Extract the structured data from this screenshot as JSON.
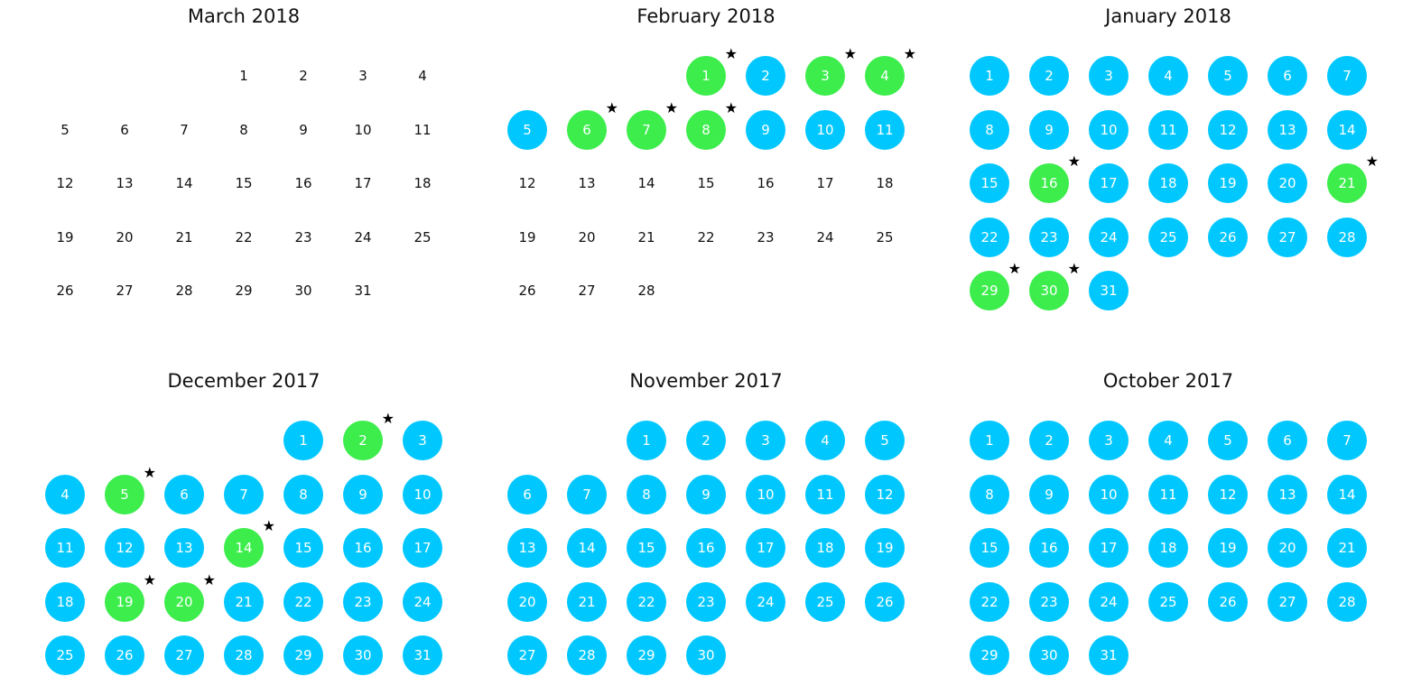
{
  "colors": {
    "active": "#00c8ff",
    "highlight": "#3ced4c",
    "text": "#111111",
    "star": "#000000"
  },
  "icons": {
    "star": "★"
  },
  "months": [
    {
      "title": "March 2018",
      "first_weekday": 3,
      "days": 31,
      "active_days": [],
      "highlighted_days": []
    },
    {
      "title": "February 2018",
      "first_weekday": 3,
      "days": 28,
      "active_days": [
        1,
        2,
        3,
        4,
        5,
        6,
        7,
        8,
        9,
        10,
        11
      ],
      "highlighted_days": [
        1,
        3,
        4,
        6,
        7,
        8
      ]
    },
    {
      "title": "January 2018",
      "first_weekday": 0,
      "days": 31,
      "active_days": [
        1,
        2,
        3,
        4,
        5,
        6,
        7,
        8,
        9,
        10,
        11,
        12,
        13,
        14,
        15,
        16,
        17,
        18,
        19,
        20,
        21,
        22,
        23,
        24,
        25,
        26,
        27,
        28,
        29,
        30,
        31
      ],
      "highlighted_days": [
        16,
        21,
        29,
        30
      ]
    },
    {
      "title": "December 2017",
      "first_weekday": 4,
      "days": 31,
      "active_days": [
        1,
        2,
        3,
        4,
        5,
        6,
        7,
        8,
        9,
        10,
        11,
        12,
        13,
        14,
        15,
        16,
        17,
        18,
        19,
        20,
        21,
        22,
        23,
        24,
        25,
        26,
        27,
        28,
        29,
        30,
        31
      ],
      "highlighted_days": [
        2,
        5,
        14,
        19,
        20
      ]
    },
    {
      "title": "November 2017",
      "first_weekday": 2,
      "days": 30,
      "active_days": [
        1,
        2,
        3,
        4,
        5,
        6,
        7,
        8,
        9,
        10,
        11,
        12,
        13,
        14,
        15,
        16,
        17,
        18,
        19,
        20,
        21,
        22,
        23,
        24,
        25,
        26,
        27,
        28,
        29,
        30
      ],
      "highlighted_days": []
    },
    {
      "title": "October 2017",
      "first_weekday": 0,
      "days": 31,
      "active_days": [
        1,
        2,
        3,
        4,
        5,
        6,
        7,
        8,
        9,
        10,
        11,
        12,
        13,
        14,
        15,
        16,
        17,
        18,
        19,
        20,
        21,
        22,
        23,
        24,
        25,
        26,
        27,
        28,
        29,
        30,
        31
      ],
      "highlighted_days": []
    }
  ]
}
